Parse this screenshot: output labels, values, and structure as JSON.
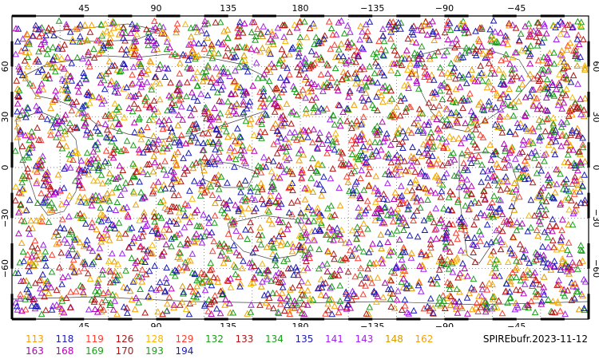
{
  "map": {
    "projection": "cylindrical-equidistant",
    "lon_range": [
      0,
      360
    ],
    "lat_range": [
      -90,
      90
    ],
    "grid": "dotted-30deg",
    "marker": "open-triangle",
    "top_lon_labels": [
      "45",
      "90",
      "135",
      "180",
      "−135",
      "−90",
      "−45"
    ],
    "bottom_lon_labels": [
      "45",
      "90",
      "135",
      "180",
      "−135",
      "−90",
      "−45"
    ],
    "lat_labels": [
      "60",
      "30",
      "0",
      "−30",
      "−60"
    ],
    "label": "SPIREbufr.2023-11-12"
  },
  "legend": {
    "rows": [
      [
        {
          "id": "113",
          "color": "#f5a000"
        },
        {
          "id": "118",
          "color": "#1a1ab8"
        },
        {
          "id": "119",
          "color": "#ff3b2e"
        },
        {
          "id": "126",
          "color": "#b51414"
        },
        {
          "id": "128",
          "color": "#f5b800"
        },
        {
          "id": "129",
          "color": "#ff3b2e"
        },
        {
          "id": "132",
          "color": "#1a9e1a"
        },
        {
          "id": "133",
          "color": "#b51414"
        },
        {
          "id": "134",
          "color": "#1a9e1a"
        },
        {
          "id": "135",
          "color": "#1a1ab8"
        },
        {
          "id": "141",
          "color": "#a020f0"
        },
        {
          "id": "143",
          "color": "#a020f0"
        },
        {
          "id": "148",
          "color": "#d89a00"
        },
        {
          "id": "162",
          "color": "#f5a000"
        }
      ],
      [
        {
          "id": "163",
          "color": "#b800b8"
        },
        {
          "id": "168",
          "color": "#b800b8"
        },
        {
          "id": "169",
          "color": "#1a9e1a"
        },
        {
          "id": "170",
          "color": "#b51414"
        },
        {
          "id": "193",
          "color": "#1a9e1a"
        },
        {
          "id": "194",
          "color": "#1a1ab8"
        }
      ]
    ]
  }
}
